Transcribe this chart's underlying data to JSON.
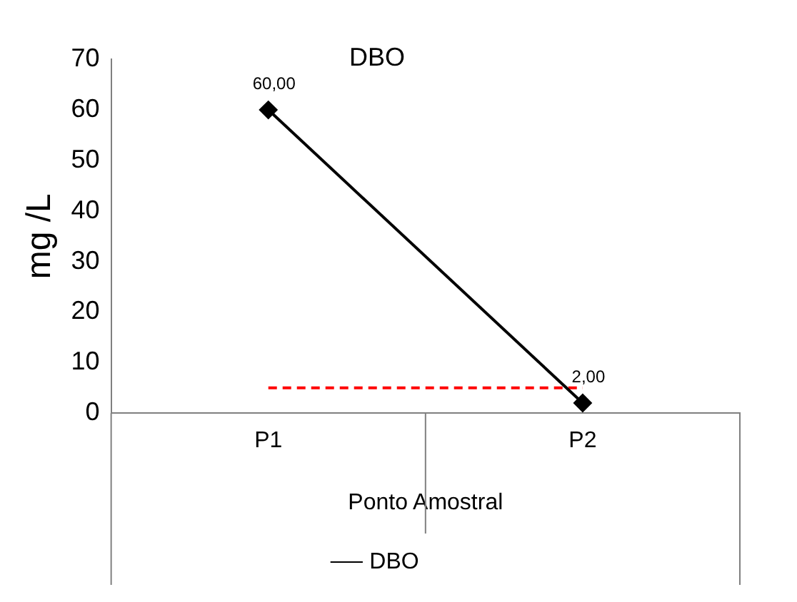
{
  "chart_data": {
    "type": "line",
    "title": "DBO",
    "xlabel": "Ponto Amostral",
    "ylabel": "mg /L",
    "categories": [
      "P1",
      "P2"
    ],
    "series": [
      {
        "name": "DBO",
        "color": "#000000",
        "values": [
          60,
          2
        ],
        "value_labels": [
          "60,00",
          "2,00"
        ]
      }
    ],
    "ylim": [
      0,
      70
    ],
    "yticks": [
      0,
      10,
      20,
      30,
      40,
      50,
      60,
      70
    ],
    "grid": false,
    "legend": "bottom",
    "marker": "diamond",
    "line_style": "solid",
    "ref_lines": [
      {
        "axis": "y",
        "value": 5,
        "color": "#ff0000",
        "line_style": "dashed"
      }
    ]
  }
}
